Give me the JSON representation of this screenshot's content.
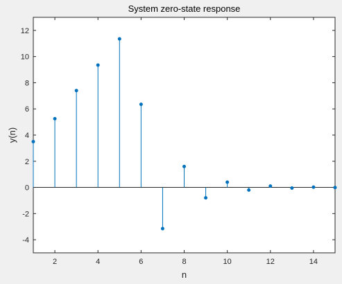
{
  "chart_data": {
    "type": "stem",
    "title": "System zero-state response",
    "xlabel": "n",
    "ylabel": "y(n)",
    "xlim": [
      1,
      15
    ],
    "ylim": [
      -5,
      13
    ],
    "xticks": [
      2,
      4,
      6,
      8,
      10,
      12,
      14
    ],
    "yticks": [
      -4,
      -2,
      0,
      2,
      4,
      6,
      8,
      10,
      12
    ],
    "x": [
      1,
      2,
      3,
      4,
      5,
      6,
      7,
      8,
      9,
      10,
      11,
      12,
      13,
      14,
      15
    ],
    "values": [
      3.5,
      5.25,
      7.4,
      9.35,
      11.35,
      6.35,
      -3.15,
      1.6,
      -0.8,
      0.4,
      -0.2,
      0.1,
      -0.05,
      0.02,
      -0.01
    ],
    "grid": false,
    "colors": {
      "stem": "#0072bd",
      "axes": "#262626",
      "background": "#f0f0f0",
      "plot_area": "#ffffff"
    }
  }
}
